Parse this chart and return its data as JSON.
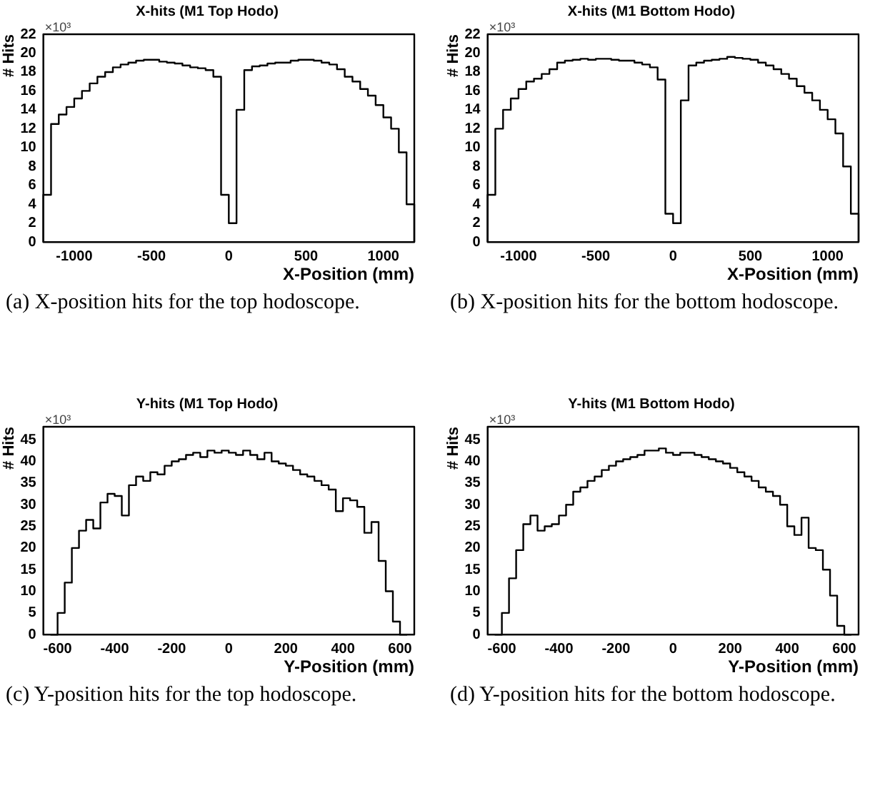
{
  "chart_data": [
    {
      "type": "histogram",
      "title": "X-hits (M1 Top Hodo)",
      "xlabel": "X-Position (mm)",
      "ylabel": "# Hits",
      "color": "#000000",
      "bins": [
        -1200,
        -1150,
        -1100,
        -1050,
        -1000,
        -950,
        -900,
        -850,
        -800,
        -750,
        -700,
        -650,
        -600,
        -550,
        -500,
        -450,
        -400,
        -350,
        -300,
        -250,
        -200,
        -150,
        -100,
        -50,
        0,
        50,
        100,
        150,
        200,
        250,
        300,
        350,
        400,
        450,
        500,
        550,
        600,
        650,
        700,
        750,
        800,
        850,
        900,
        950,
        1000,
        1050,
        1100,
        1150,
        1200
      ],
      "values": [
        5,
        12.5,
        13.5,
        14.3,
        15.2,
        16,
        16.8,
        17.5,
        18,
        18.5,
        18.8,
        19,
        19.2,
        19.3,
        19.3,
        19.1,
        19,
        18.9,
        18.7,
        18.5,
        18.4,
        18.2,
        17.5,
        5,
        2,
        14,
        18.2,
        18.6,
        18.7,
        18.9,
        19,
        19,
        19.2,
        19.3,
        19.3,
        19.2,
        19,
        18.8,
        18.3,
        17.5,
        17,
        16.2,
        15.5,
        14.5,
        13.2,
        12,
        9.5,
        4
      ],
      "xlim": [
        -1200,
        1200
      ],
      "xticks": [
        -1000,
        -500,
        0,
        500,
        1000
      ],
      "ylim": [
        0,
        22
      ],
      "yticks": [
        0,
        2,
        4,
        6,
        8,
        10,
        12,
        14,
        16,
        18,
        20,
        22
      ],
      "annotations": [
        "×10³",
        "(a) X-position hits for the top hodoscope."
      ]
    },
    {
      "type": "histogram",
      "title": "X-hits (M1 Bottom Hodo)",
      "xlabel": "X-Position (mm)",
      "ylabel": "# Hits",
      "color": "#000000",
      "bins": [
        -1200,
        -1150,
        -1100,
        -1050,
        -1000,
        -950,
        -900,
        -850,
        -800,
        -750,
        -700,
        -650,
        -600,
        -550,
        -500,
        -450,
        -400,
        -350,
        -300,
        -250,
        -200,
        -150,
        -100,
        -50,
        0,
        50,
        100,
        150,
        200,
        250,
        300,
        350,
        400,
        450,
        500,
        550,
        600,
        650,
        700,
        750,
        800,
        850,
        900,
        950,
        1000,
        1050,
        1100,
        1150,
        1200
      ],
      "values": [
        5,
        12,
        14,
        15.2,
        16.2,
        17,
        17.3,
        17.8,
        18.3,
        19,
        19.2,
        19.3,
        19.4,
        19.3,
        19.4,
        19.4,
        19.3,
        19.2,
        19.2,
        19,
        18.8,
        18.5,
        17.2,
        3,
        2,
        15,
        18.7,
        19,
        19.2,
        19.3,
        19.4,
        19.6,
        19.5,
        19.4,
        19.3,
        19,
        18.7,
        18.3,
        17.8,
        17.3,
        16.5,
        15.8,
        15,
        14,
        13,
        11.5,
        8,
        3
      ],
      "xlim": [
        -1200,
        1200
      ],
      "xticks": [
        -1000,
        -500,
        0,
        500,
        1000
      ],
      "ylim": [
        0,
        22
      ],
      "yticks": [
        0,
        2,
        4,
        6,
        8,
        10,
        12,
        14,
        16,
        18,
        20,
        22
      ],
      "annotations": [
        "×10³",
        "(b) X-position hits for the bottom hodoscope."
      ]
    },
    {
      "type": "histogram",
      "title": "Y-hits (M1 Top Hodo)",
      "xlabel": "Y-Position (mm)",
      "ylabel": "# Hits",
      "color": "#000000",
      "bins": [
        -625,
        -600,
        -575,
        -550,
        -525,
        -500,
        -475,
        -450,
        -425,
        -400,
        -375,
        -350,
        -325,
        -300,
        -275,
        -250,
        -225,
        -200,
        -175,
        -150,
        -125,
        -100,
        -75,
        -50,
        -25,
        0,
        25,
        50,
        75,
        100,
        125,
        150,
        175,
        200,
        225,
        250,
        275,
        300,
        325,
        350,
        375,
        400,
        425,
        450,
        475,
        500,
        525,
        550,
        575,
        600,
        625
      ],
      "values": [
        0,
        5,
        12,
        20,
        24,
        26.5,
        24.5,
        30.5,
        32.5,
        32,
        27.5,
        34.5,
        36.5,
        35.5,
        37.5,
        37,
        39,
        40,
        40.5,
        41.5,
        42,
        41,
        42.5,
        42,
        42.5,
        42,
        41.5,
        42.5,
        41.5,
        40.5,
        42,
        40,
        39.5,
        39,
        38,
        37,
        36.5,
        35.5,
        34.5,
        33.5,
        28.5,
        31.5,
        31,
        29.5,
        23.5,
        26,
        17,
        10,
        3,
        0
      ],
      "xlim": [
        -650,
        650
      ],
      "xticks": [
        -600,
        -400,
        -200,
        0,
        200,
        400,
        600
      ],
      "ylim": [
        0,
        48
      ],
      "yticks": [
        0,
        5,
        10,
        15,
        20,
        25,
        30,
        35,
        40,
        45
      ],
      "annotations": [
        "×10³",
        "(c) Y-position hits for the top hodoscope."
      ]
    },
    {
      "type": "histogram",
      "title": "Y-hits (M1 Bottom Hodo)",
      "xlabel": "Y-Position (mm)",
      "ylabel": "# Hits",
      "color": "#000000",
      "bins": [
        -625,
        -600,
        -575,
        -550,
        -525,
        -500,
        -475,
        -450,
        -425,
        -400,
        -375,
        -350,
        -325,
        -300,
        -275,
        -250,
        -225,
        -200,
        -175,
        -150,
        -125,
        -100,
        -75,
        -50,
        -25,
        0,
        25,
        50,
        75,
        100,
        125,
        150,
        175,
        200,
        225,
        250,
        275,
        300,
        325,
        350,
        375,
        400,
        425,
        450,
        475,
        500,
        525,
        550,
        575,
        600,
        625
      ],
      "values": [
        0,
        5,
        13,
        19.5,
        25.5,
        27.5,
        24,
        25,
        25.5,
        27.5,
        30,
        33,
        34,
        35.5,
        36.5,
        38,
        39,
        40,
        40.5,
        41,
        41.5,
        42.5,
        42.5,
        43,
        42,
        41.5,
        42,
        42,
        41.5,
        41,
        40.5,
        40,
        39.5,
        38.5,
        37.5,
        36.5,
        35.5,
        34,
        33,
        32,
        30,
        25,
        23,
        27,
        20,
        19.5,
        15,
        9,
        2,
        0
      ],
      "xlim": [
        -650,
        650
      ],
      "xticks": [
        -600,
        -400,
        -200,
        0,
        200,
        400,
        600
      ],
      "ylim": [
        0,
        48
      ],
      "yticks": [
        0,
        5,
        10,
        15,
        20,
        25,
        30,
        35,
        40,
        45
      ],
      "annotations": [
        "×10³",
        "(d) Y-position hits for the bottom hodoscope."
      ]
    }
  ]
}
